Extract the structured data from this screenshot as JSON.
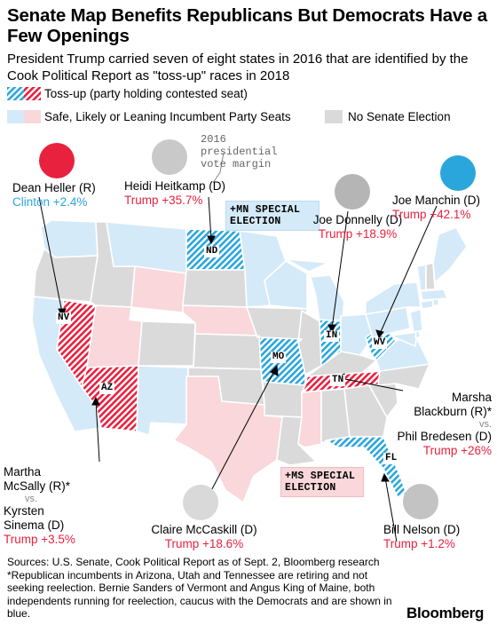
{
  "title": "Senate Map Benefits Republicans But Democrats Have a Few Openings",
  "subtitle": "President Trump carried seven of eight states in 2016 that are identified by the Cook Political Report as \"toss-up\" races in 2018",
  "legend": {
    "tossup": "Toss-up (party holding contested seat)",
    "safe": "Safe, Likely or Leaning Incumbent Party Seats",
    "none": "No Senate Election"
  },
  "colors": {
    "red_dark": "#e8213f",
    "red_light": "#f9d7da",
    "blue_dark": "#2aa6dc",
    "blue_light": "#d5eaf8",
    "gray": "#dadada"
  },
  "vote_note": "2016 presidential vote margin",
  "special": {
    "mn": "+MN SPECIAL ELECTION",
    "ms": "+MS SPECIAL ELECTION"
  },
  "states": {
    "nv": "NV",
    "az": "AZ",
    "nd": "ND",
    "mo": "MO",
    "in": "IN",
    "wv": "WV",
    "tn": "TN",
    "fl": "FL"
  },
  "candidates": {
    "heller": {
      "name": "Dean Heller (R)",
      "margin": "Clinton +2.4%"
    },
    "heitkamp": {
      "name": "Heidi Heitkamp (D)",
      "margin": "Trump +35.7%"
    },
    "donnelly": {
      "name": "Joe Donnelly (D)",
      "margin": "Trump +18.9%"
    },
    "manchin": {
      "name": "Joe Manchin (D)",
      "margin": "Trump +42.1%"
    },
    "blackburn": {
      "name1": "Marsha",
      "name2": "Blackburn (R)*",
      "vs": "vs.",
      "name3": "Phil Bredesen (D)",
      "margin": "Trump +26%"
    },
    "mcsally": {
      "name1": "Martha",
      "name2": "McSally (R)*",
      "vs": "vs.",
      "name3": "Kyrsten",
      "name4": "Sinema (D)",
      "margin": "Trump +3.5%"
    },
    "mccaskill": {
      "name": "Claire McCaskill (D)",
      "margin": "Trump +18.6%"
    },
    "nelson": {
      "name": "Bill Nelson (D)",
      "margin": "Trump +1.2%"
    }
  },
  "sources": "Sources: U.S. Senate, Cook Political Report as of Sept. 2, Bloomberg research *Republican incumbents in Arizona, Utah and Tennessee are retiring and not seeking reelection. Bernie Sanders of Vermont and Angus King of Maine, both independents running for reelection, caucus with the Democrats and are shown in blue.",
  "brand": "Bloomberg"
}
